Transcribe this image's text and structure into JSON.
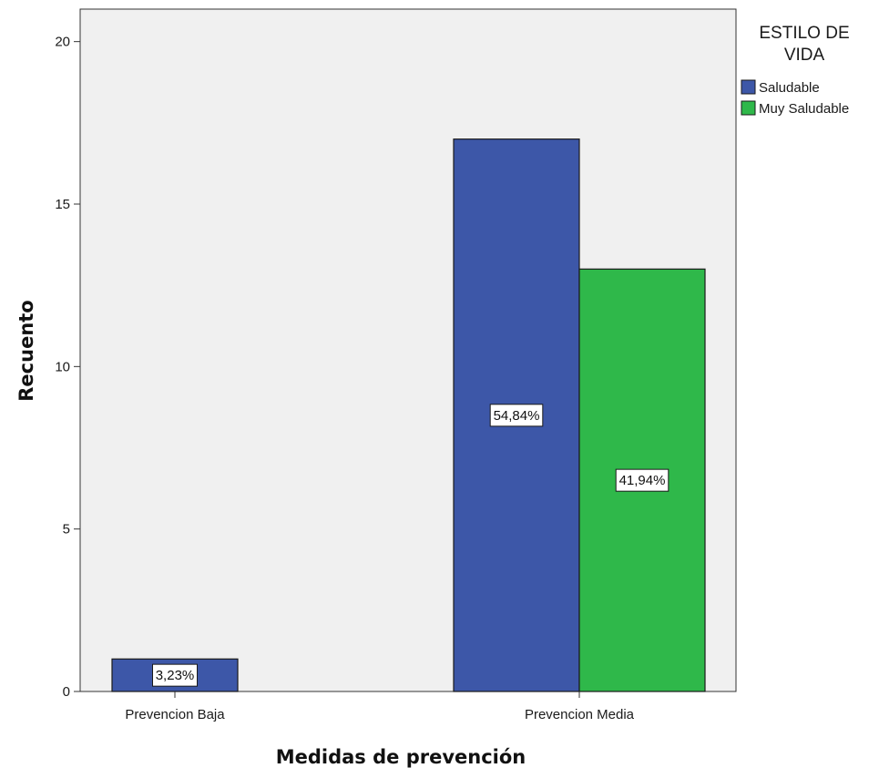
{
  "chart_data": {
    "type": "bar",
    "categories": [
      "Prevencion Baja",
      "Prevencion Media"
    ],
    "series": [
      {
        "name": "Saludable",
        "values": [
          1,
          17
        ],
        "labels": [
          "3,23%",
          "54,84%"
        ]
      },
      {
        "name": "Muy Saludable",
        "values": [
          0,
          13
        ],
        "labels": [
          "",
          "41,94%"
        ]
      }
    ],
    "xlabel": "Medidas de prevención",
    "ylabel": "Recuento",
    "ylim": [
      0,
      20
    ],
    "yticks": [
      "0",
      "5",
      "10",
      "15",
      "20"
    ],
    "legend": {
      "title_lines": [
        "ESTILO DE",
        "VIDA"
      ],
      "placement": "top-right"
    },
    "grid": false
  },
  "colors": {
    "Saludable": "#3d57a8",
    "Muy Saludable": "#2fb84a",
    "plot_background": "#f0f0f0",
    "axis": "#333333"
  }
}
